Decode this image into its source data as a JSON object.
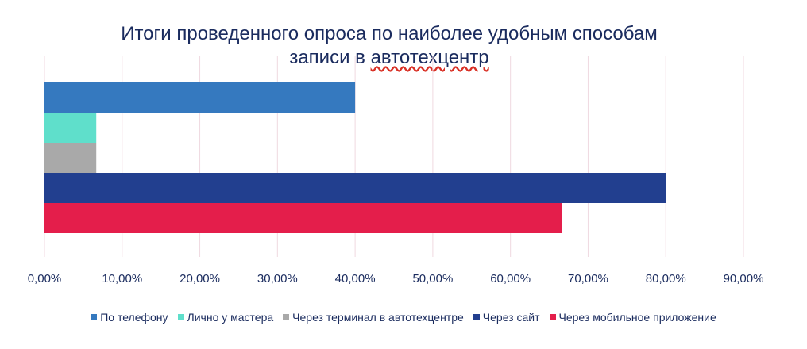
{
  "chart_data": {
    "type": "bar",
    "orientation": "horizontal",
    "title_lines": [
      "Итоги проведенного опроса по наиболее удобным способам",
      "записи в автотехцентр"
    ],
    "title_underlined_word": "автотехцентр",
    "xlim": [
      0,
      0.9
    ],
    "x_ticks": [
      0,
      0.1,
      0.2,
      0.3,
      0.4,
      0.5,
      0.6,
      0.7,
      0.8,
      0.9
    ],
    "x_tick_labels": [
      "0,00%",
      "10,00%",
      "20,00%",
      "30,00%",
      "40,00%",
      "50,00%",
      "60,00%",
      "70,00%",
      "80,00%",
      "90,00%"
    ],
    "grid": true,
    "legend_position": "bottom",
    "series": [
      {
        "name": "По телефону",
        "value": 0.4,
        "color": "#3579bf"
      },
      {
        "name": "Лично у мастера",
        "value": 0.0667,
        "color": "#5fdfcb"
      },
      {
        "name": "Через терминал в автотехцентре",
        "value": 0.0667,
        "color": "#a9a9a9"
      },
      {
        "name": "Через сайт",
        "value": 0.8,
        "color": "#223f8f"
      },
      {
        "name": "Через мобильное приложение",
        "value": 0.6667,
        "color": "#e41e4b"
      }
    ]
  }
}
